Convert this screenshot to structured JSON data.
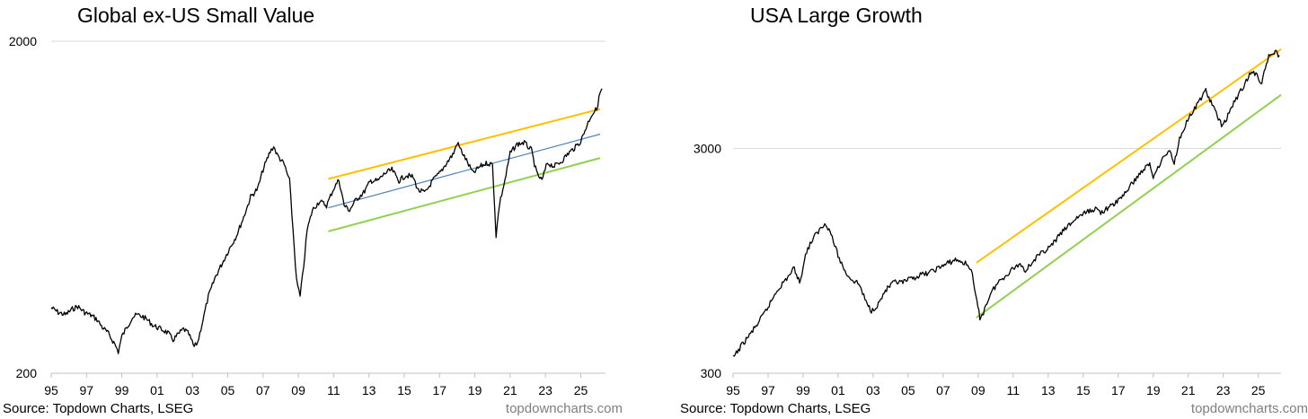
{
  "chart_data": [
    {
      "type": "line",
      "scale": "log",
      "title": "Global ex-US Small Value",
      "source": "Source: Topdown Charts, LSEG",
      "credit": "topdowncharts.com",
      "x_range": [
        1995,
        2026.4
      ],
      "ylim": [
        200,
        2000
      ],
      "y_ticks": [
        200,
        2000
      ],
      "x_tick_labels": [
        "95",
        "97",
        "99",
        "01",
        "03",
        "05",
        "07",
        "09",
        "11",
        "13",
        "15",
        "17",
        "19",
        "21",
        "23",
        "25"
      ],
      "x_tick_values": [
        1995,
        1997,
        1999,
        2001,
        2003,
        2005,
        2007,
        2009,
        2011,
        2013,
        2015,
        2017,
        2019,
        2021,
        2023,
        2025
      ],
      "series": [
        {
          "name": "Global ex-US Small Value",
          "color": "#000000",
          "points": [
            [
              1995.0,
              315
            ],
            [
              1995.4,
              305
            ],
            [
              1995.8,
              300
            ],
            [
              1996.2,
              312
            ],
            [
              1996.5,
              318
            ],
            [
              1996.9,
              305
            ],
            [
              1997.3,
              298
            ],
            [
              1997.6,
              290
            ],
            [
              1997.9,
              275
            ],
            [
              1998.2,
              265
            ],
            [
              1998.6,
              245
            ],
            [
              1998.8,
              232
            ],
            [
              1999.0,
              258
            ],
            [
              1999.3,
              276
            ],
            [
              1999.6,
              295
            ],
            [
              1999.9,
              300
            ],
            [
              2000.2,
              296
            ],
            [
              2000.5,
              288
            ],
            [
              2000.8,
              278
            ],
            [
              2001.2,
              272
            ],
            [
              2001.6,
              265
            ],
            [
              2001.9,
              252
            ],
            [
              2002.2,
              262
            ],
            [
              2002.5,
              272
            ],
            [
              2002.8,
              262
            ],
            [
              2003.1,
              240
            ],
            [
              2003.3,
              248
            ],
            [
              2003.6,
              290
            ],
            [
              2003.9,
              340
            ],
            [
              2004.3,
              390
            ],
            [
              2004.7,
              430
            ],
            [
              2005.1,
              475
            ],
            [
              2005.5,
              520
            ],
            [
              2005.9,
              590
            ],
            [
              2006.3,
              680
            ],
            [
              2006.7,
              720
            ],
            [
              2007.0,
              820
            ],
            [
              2007.4,
              930
            ],
            [
              2007.6,
              965
            ],
            [
              2007.8,
              910
            ],
            [
              2008.2,
              850
            ],
            [
              2008.5,
              760
            ],
            [
              2008.7,
              540
            ],
            [
              2008.9,
              380
            ],
            [
              2009.1,
              340
            ],
            [
              2009.3,
              420
            ],
            [
              2009.5,
              540
            ],
            [
              2009.8,
              620
            ],
            [
              2010.2,
              660
            ],
            [
              2010.6,
              640
            ],
            [
              2011.0,
              720
            ],
            [
              2011.3,
              765
            ],
            [
              2011.6,
              640
            ],
            [
              2011.9,
              620
            ],
            [
              2012.3,
              670
            ],
            [
              2012.7,
              700
            ],
            [
              2013.1,
              760
            ],
            [
              2013.5,
              760
            ],
            [
              2013.9,
              800
            ],
            [
              2014.3,
              820
            ],
            [
              2014.7,
              760
            ],
            [
              2015.1,
              790
            ],
            [
              2015.5,
              780
            ],
            [
              2015.8,
              710
            ],
            [
              2016.2,
              700
            ],
            [
              2016.6,
              760
            ],
            [
              2017.0,
              800
            ],
            [
              2017.4,
              860
            ],
            [
              2017.8,
              920
            ],
            [
              2018.0,
              990
            ],
            [
              2018.4,
              900
            ],
            [
              2018.9,
              800
            ],
            [
              2019.3,
              840
            ],
            [
              2019.7,
              860
            ],
            [
              2020.0,
              850
            ],
            [
              2020.2,
              520
            ],
            [
              2020.4,
              650
            ],
            [
              2020.7,
              760
            ],
            [
              2021.0,
              920
            ],
            [
              2021.4,
              980
            ],
            [
              2021.8,
              990
            ],
            [
              2022.2,
              940
            ],
            [
              2022.5,
              800
            ],
            [
              2022.8,
              760
            ],
            [
              2023.1,
              860
            ],
            [
              2023.5,
              840
            ],
            [
              2023.9,
              870
            ],
            [
              2024.3,
              920
            ],
            [
              2024.7,
              960
            ],
            [
              2025.0,
              1000
            ],
            [
              2025.3,
              1100
            ],
            [
              2025.6,
              1200
            ],
            [
              2025.9,
              1250
            ],
            [
              2026.1,
              1400
            ],
            [
              2026.2,
              1440
            ]
          ]
        },
        {
          "name": "Upper trend",
          "color": "#ffc000",
          "points": [
            [
              2010.7,
              770
            ],
            [
              2026.1,
              1250
            ]
          ]
        },
        {
          "name": "Middle trend",
          "color": "#4f81bd",
          "points": [
            [
              2010.7,
              630
            ],
            [
              2026.1,
              1050
            ]
          ]
        },
        {
          "name": "Lower trend",
          "color": "#92d050",
          "points": [
            [
              2010.7,
              535
            ],
            [
              2026.1,
              890
            ]
          ]
        }
      ]
    },
    {
      "type": "line",
      "scale": "log",
      "title": "USA Large Growth",
      "source": "Source: Topdown Charts, LSEG",
      "credit": "topdowncharts.com",
      "x_range": [
        1995,
        2026.3
      ],
      "ylim": [
        300,
        9000
      ],
      "y_ticks": [
        300,
        3000
      ],
      "x_tick_labels": [
        "95",
        "97",
        "99",
        "01",
        "03",
        "05",
        "07",
        "09",
        "11",
        "13",
        "15",
        "17",
        "19",
        "21",
        "23",
        "25"
      ],
      "x_tick_values": [
        1995,
        1997,
        1999,
        2001,
        2003,
        2005,
        2007,
        2009,
        2011,
        2013,
        2015,
        2017,
        2019,
        2021,
        2023,
        2025
      ],
      "series": [
        {
          "name": "USA Large Growth",
          "color": "#000000",
          "points": [
            [
              1995.0,
              350
            ],
            [
              1995.5,
              400
            ],
            [
              1996.0,
              450
            ],
            [
              1996.5,
              510
            ],
            [
              1997.0,
              590
            ],
            [
              1997.5,
              700
            ],
            [
              1998.0,
              780
            ],
            [
              1998.5,
              880
            ],
            [
              1998.8,
              760
            ],
            [
              1999.2,
              1050
            ],
            [
              1999.6,
              1200
            ],
            [
              2000.0,
              1320
            ],
            [
              2000.3,
              1400
            ],
            [
              2000.6,
              1250
            ],
            [
              2001.0,
              1000
            ],
            [
              2001.4,
              850
            ],
            [
              2001.8,
              780
            ],
            [
              2002.2,
              750
            ],
            [
              2002.6,
              620
            ],
            [
              2002.9,
              570
            ],
            [
              2003.3,
              610
            ],
            [
              2003.7,
              700
            ],
            [
              2004.2,
              760
            ],
            [
              2004.7,
              760
            ],
            [
              2005.2,
              790
            ],
            [
              2005.7,
              820
            ],
            [
              2006.2,
              840
            ],
            [
              2006.7,
              880
            ],
            [
              2007.2,
              920
            ],
            [
              2007.7,
              960
            ],
            [
              2008.2,
              930
            ],
            [
              2008.6,
              880
            ],
            [
              2008.8,
              700
            ],
            [
              2009.1,
              530
            ],
            [
              2009.3,
              560
            ],
            [
              2009.7,
              680
            ],
            [
              2010.2,
              770
            ],
            [
              2010.6,
              820
            ],
            [
              2011.0,
              880
            ],
            [
              2011.4,
              920
            ],
            [
              2011.7,
              860
            ],
            [
              2012.2,
              960
            ],
            [
              2012.7,
              1040
            ],
            [
              2013.2,
              1110
            ],
            [
              2013.7,
              1250
            ],
            [
              2014.2,
              1370
            ],
            [
              2014.7,
              1490
            ],
            [
              2015.2,
              1560
            ],
            [
              2015.7,
              1620
            ],
            [
              2016.0,
              1560
            ],
            [
              2016.5,
              1640
            ],
            [
              2017.0,
              1760
            ],
            [
              2017.5,
              1950
            ],
            [
              2018.0,
              2200
            ],
            [
              2018.5,
              2450
            ],
            [
              2018.8,
              2550
            ],
            [
              2019.0,
              2250
            ],
            [
              2019.4,
              2600
            ],
            [
              2019.9,
              2950
            ],
            [
              2020.2,
              2600
            ],
            [
              2020.5,
              3300
            ],
            [
              2020.9,
              3950
            ],
            [
              2021.3,
              4400
            ],
            [
              2021.8,
              5150
            ],
            [
              2022.0,
              5450
            ],
            [
              2022.3,
              4800
            ],
            [
              2022.6,
              4300
            ],
            [
              2022.9,
              3800
            ],
            [
              2023.2,
              4100
            ],
            [
              2023.6,
              4800
            ],
            [
              2024.0,
              5400
            ],
            [
              2024.5,
              6400
            ],
            [
              2024.8,
              6500
            ],
            [
              2025.2,
              5900
            ],
            [
              2025.6,
              7800
            ],
            [
              2025.9,
              8100
            ],
            [
              2026.2,
              7800
            ]
          ]
        },
        {
          "name": "Upper trend",
          "color": "#ffc000",
          "points": [
            [
              2008.9,
              930
            ],
            [
              2026.3,
              8300
            ]
          ]
        },
        {
          "name": "Lower trend",
          "color": "#92d050",
          "points": [
            [
              2008.9,
              530
            ],
            [
              2026.3,
              5200
            ]
          ]
        }
      ]
    }
  ]
}
